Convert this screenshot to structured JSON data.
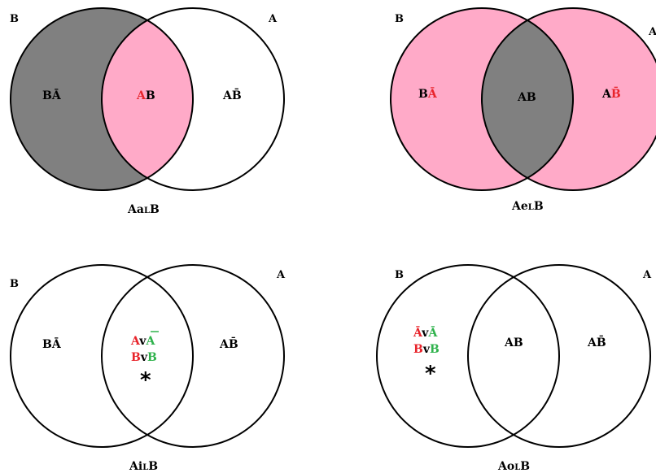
{
  "colors": {
    "shade_gray": "#808080",
    "shade_pink": "#ffaac8",
    "red": "#e8242b",
    "green": "#2fb24c",
    "ink": "#000000"
  },
  "diagrams": [
    {
      "caption_main": "Aa",
      "caption_sub": "L",
      "caption_tail": "B",
      "label_b": "B",
      "label_a": "A",
      "left_region": "BĀ",
      "middle_region_a": "A",
      "middle_region_b": "B",
      "right_region": "AB̄"
    },
    {
      "caption_main": "Ae",
      "caption_sub": "L",
      "caption_tail": "B",
      "label_b": "B",
      "label_a": "A",
      "left_region_b": "B",
      "left_region_abar": "Ā",
      "middle_region": "AB",
      "right_region_a": "A",
      "right_region_bbar": "B̄"
    },
    {
      "caption_main": "Ai",
      "caption_sub": "L",
      "caption_tail": "B",
      "label_b": "B",
      "label_a": "A",
      "left_region": "BĀ",
      "middle_line1_a": "A",
      "middle_line1_v": "v",
      "middle_line1_abar": "A",
      "middle_line2_b": "B",
      "middle_line2_v": "v",
      "middle_line2_bb": "B",
      "star": "*",
      "right_region": "AB̄"
    },
    {
      "caption_main": "Ao",
      "caption_sub": "L",
      "caption_tail": "B",
      "label_b": "B",
      "label_a": "A",
      "left_line1_abar": "Ā",
      "left_line1_v": "v",
      "left_line1_abar2": "Ā",
      "left_line2_b": "B",
      "left_line2_v": "v",
      "left_line2_b2": "B",
      "star": "*",
      "middle_region": "AB",
      "right_region": "AB̄"
    }
  ]
}
